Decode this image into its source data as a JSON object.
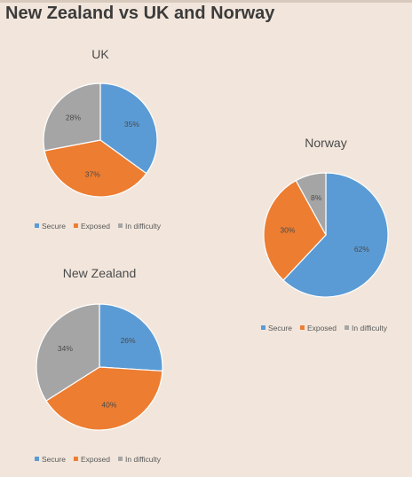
{
  "page": {
    "title": "New Zealand vs UK and Norway"
  },
  "legend_labels": [
    "Secure",
    "Exposed",
    "In difficulty"
  ],
  "colors": {
    "Secure": "#5b9bd5",
    "Exposed": "#ed7d31",
    "In difficulty": "#a5a5a5"
  },
  "chart_data": [
    {
      "type": "pie",
      "title": "UK",
      "categories": [
        "Secure",
        "Exposed",
        "In difficulty"
      ],
      "values": [
        35,
        37,
        28
      ],
      "labels": [
        "35%",
        "37%",
        "28%"
      ],
      "legend": "bottom"
    },
    {
      "type": "pie",
      "title": "Norway",
      "categories": [
        "Secure",
        "Exposed",
        "In difficulty"
      ],
      "values": [
        62,
        30,
        8
      ],
      "labels": [
        "62%",
        "30%",
        "8%"
      ],
      "legend": "bottom"
    },
    {
      "type": "pie",
      "title": "New Zealand",
      "categories": [
        "Secure",
        "Exposed",
        "In difficulty"
      ],
      "values": [
        26,
        40,
        34
      ],
      "labels": [
        "26%",
        "40%",
        "34%"
      ],
      "legend": "bottom"
    }
  ]
}
